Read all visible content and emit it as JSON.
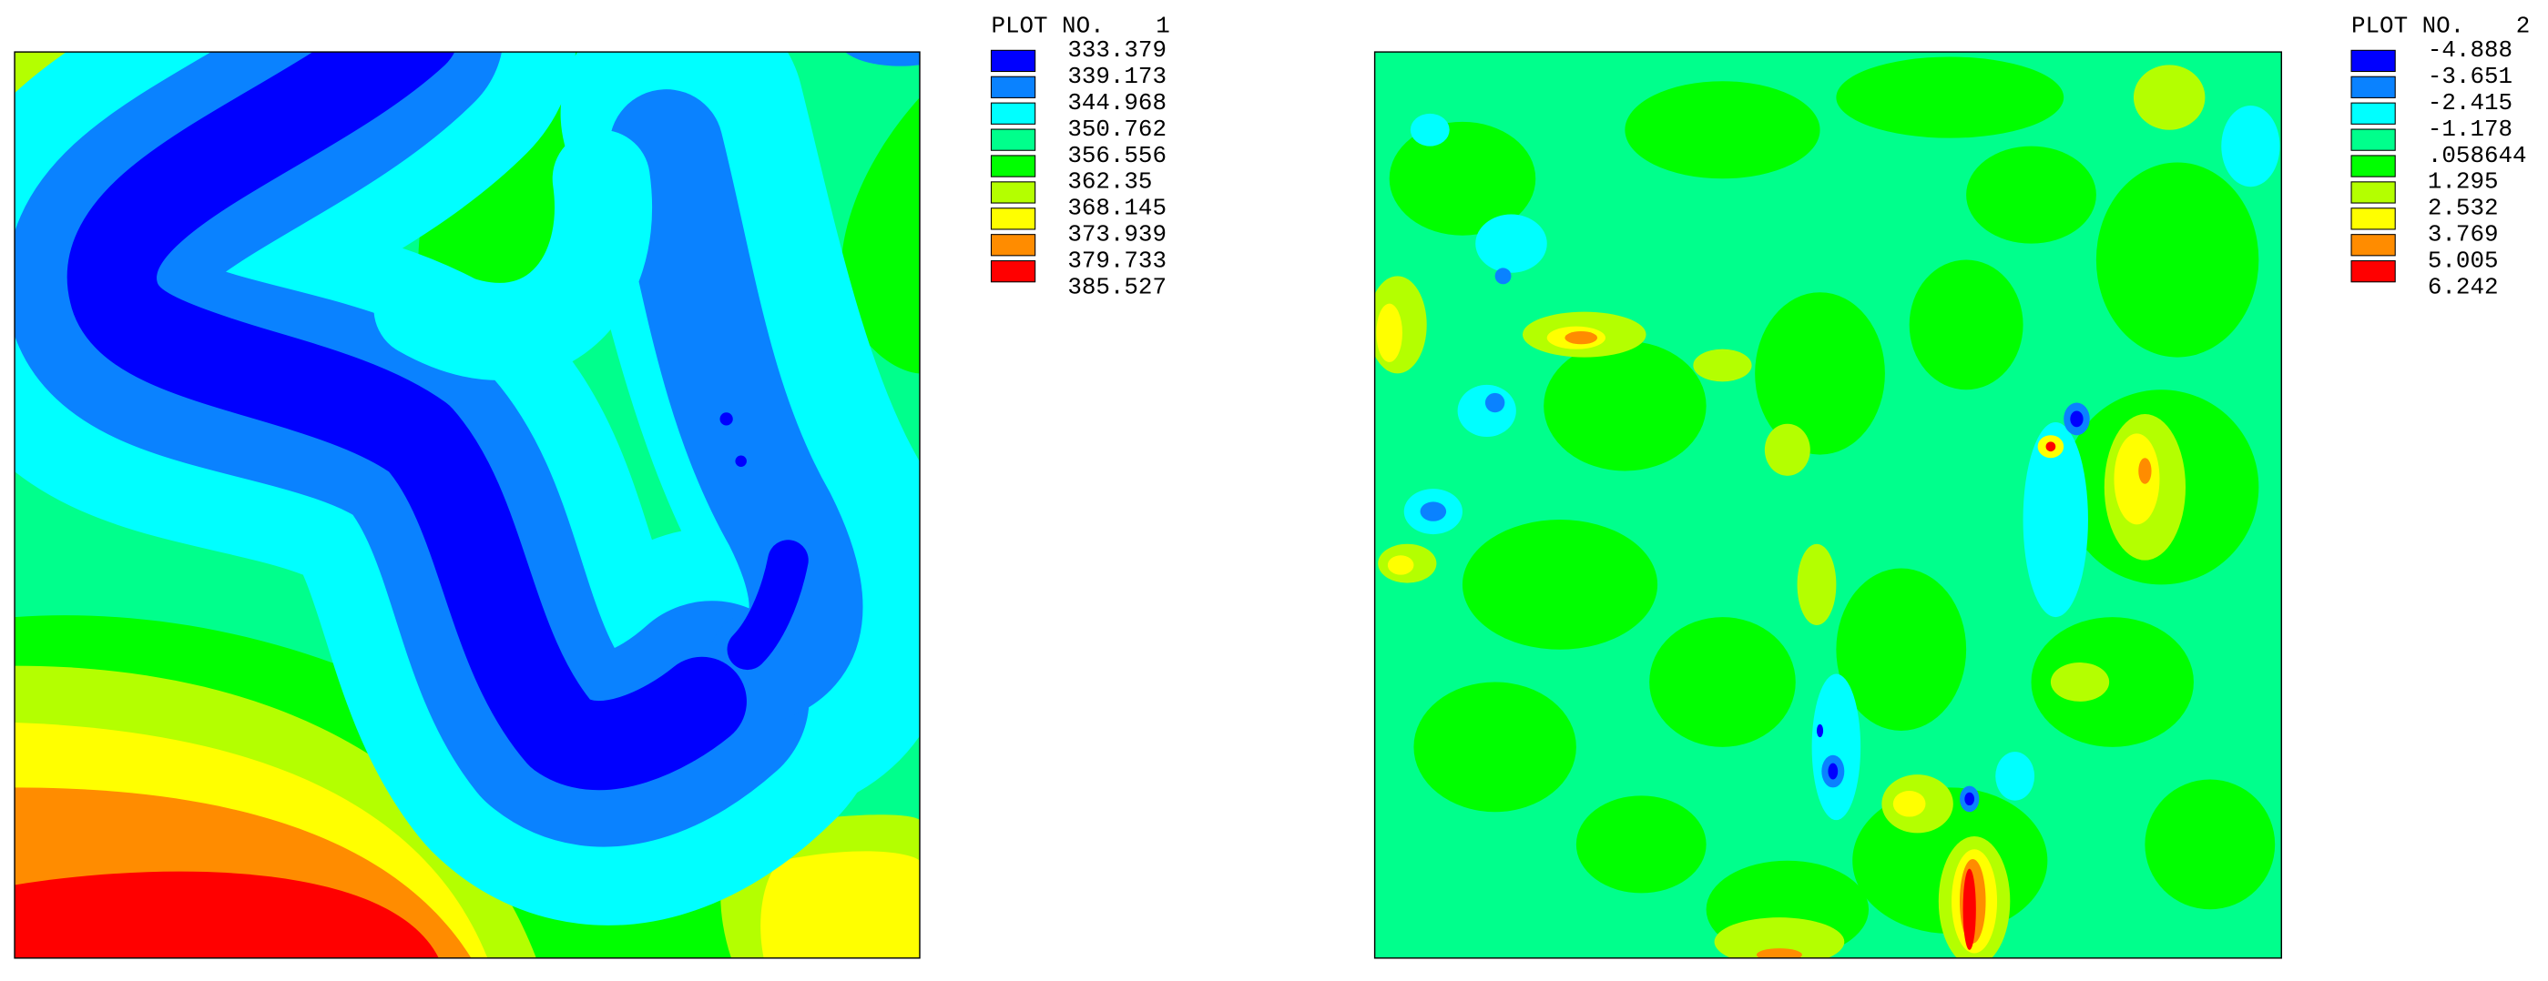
{
  "plots": [
    {
      "label": "PLOT NO.",
      "number": "1",
      "values": [
        "333.379",
        "339.173",
        "344.968",
        "350.762",
        "356.556",
        "362.35",
        "368.145",
        "373.939",
        "379.733",
        "385.527"
      ],
      "colors": [
        "#0000ff",
        "#0a82ff",
        "#00ffff",
        "#00ff8c",
        "#00ff00",
        "#b4ff00",
        "#ffff00",
        "#ff8c00",
        "#ff0000"
      ]
    },
    {
      "label": "PLOT NO.",
      "number": "2",
      "values": [
        "-4.888",
        "-3.651",
        "-2.415",
        "-1.178",
        ".058644",
        "1.295",
        "2.532",
        "3.769",
        "5.005",
        "6.242"
      ],
      "colors": [
        "#0000ff",
        "#0a82ff",
        "#00ffff",
        "#00ff8c",
        "#00ff00",
        "#b4ff00",
        "#ffff00",
        "#ff8c00",
        "#ff0000"
      ]
    }
  ]
}
